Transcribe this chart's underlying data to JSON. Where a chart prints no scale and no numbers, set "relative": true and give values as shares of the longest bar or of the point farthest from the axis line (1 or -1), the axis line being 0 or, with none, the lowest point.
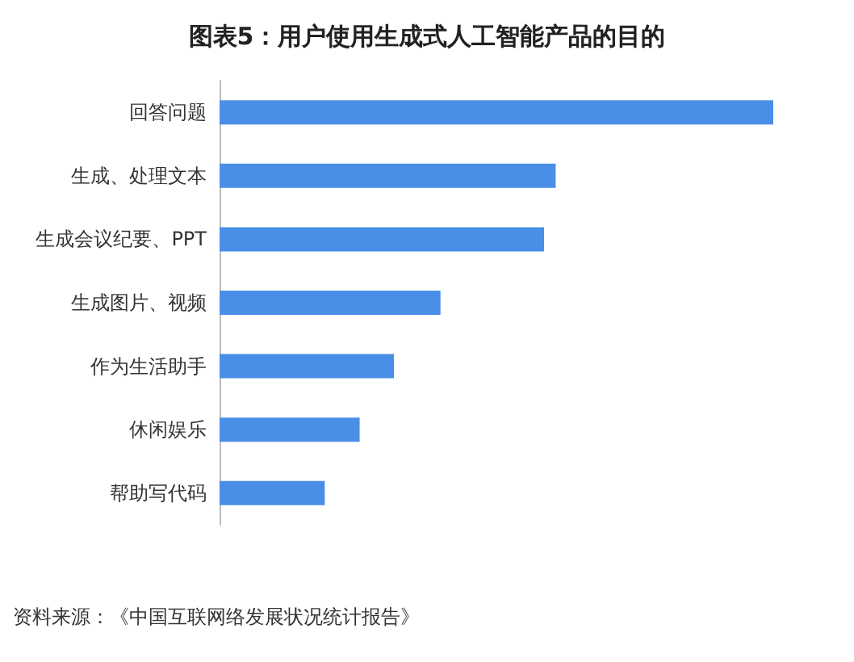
{
  "chart_data": {
    "type": "bar",
    "orientation": "horizontal",
    "relative": true,
    "title": "图表5：用户使用生成式人工智能产品的目的",
    "categories": [
      "回答问题",
      "生成、处理文本",
      "生成会议纪要、PPT",
      "生成图片、视频",
      "作为生活助手",
      "休闲娱乐",
      "帮助写代码"
    ],
    "values": [
      1,
      0.607,
      0.586,
      0.399,
      0.315,
      0.253,
      0.19
    ],
    "color": "#4a8fe7",
    "annotations": [
      "资料来源：《中国互联网络发展状况统计报告》"
    ]
  }
}
